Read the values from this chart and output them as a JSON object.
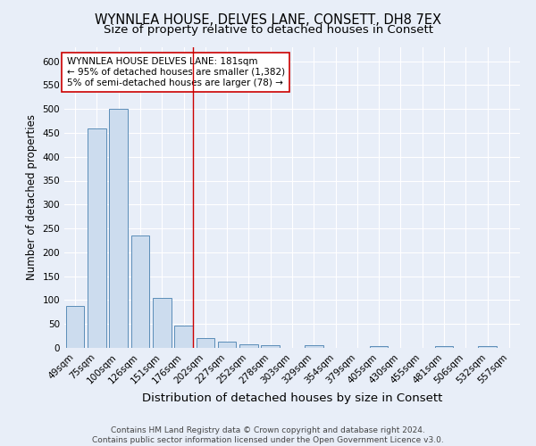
{
  "title": "WYNNLEA HOUSE, DELVES LANE, CONSETT, DH8 7EX",
  "subtitle": "Size of property relative to detached houses in Consett",
  "xlabel": "Distribution of detached houses by size in Consett",
  "ylabel": "Number of detached properties",
  "categories": [
    "49sqm",
    "75sqm",
    "100sqm",
    "126sqm",
    "151sqm",
    "176sqm",
    "202sqm",
    "227sqm",
    "252sqm",
    "278sqm",
    "303sqm",
    "329sqm",
    "354sqm",
    "379sqm",
    "405sqm",
    "430sqm",
    "455sqm",
    "481sqm",
    "506sqm",
    "532sqm",
    "557sqm"
  ],
  "values": [
    88,
    460,
    500,
    235,
    105,
    46,
    20,
    13,
    8,
    5,
    0,
    5,
    0,
    0,
    4,
    0,
    0,
    4,
    0,
    4,
    0
  ],
  "bar_color": "#ccdcee",
  "bar_edge_color": "#5b8db8",
  "vline_x_index": 5,
  "vline_color": "#cc0000",
  "annotation_text": "WYNNLEA HOUSE DELVES LANE: 181sqm\n← 95% of detached houses are smaller (1,382)\n5% of semi-detached houses are larger (78) →",
  "annotation_box_facecolor": "#ffffff",
  "annotation_box_edgecolor": "#cc0000",
  "ylim": [
    0,
    630
  ],
  "yticks": [
    0,
    50,
    100,
    150,
    200,
    250,
    300,
    350,
    400,
    450,
    500,
    550,
    600
  ],
  "title_fontsize": 10.5,
  "subtitle_fontsize": 9.5,
  "xlabel_fontsize": 9.5,
  "ylabel_fontsize": 8.5,
  "tick_fontsize": 7.5,
  "annotation_fontsize": 7.5,
  "footer_text": "Contains HM Land Registry data © Crown copyright and database right 2024.\nContains public sector information licensed under the Open Government Licence v3.0.",
  "footer_fontsize": 6.5,
  "bg_color": "#e8eef8",
  "plot_bg_color": "#e8eef8",
  "grid_color": "#ffffff"
}
